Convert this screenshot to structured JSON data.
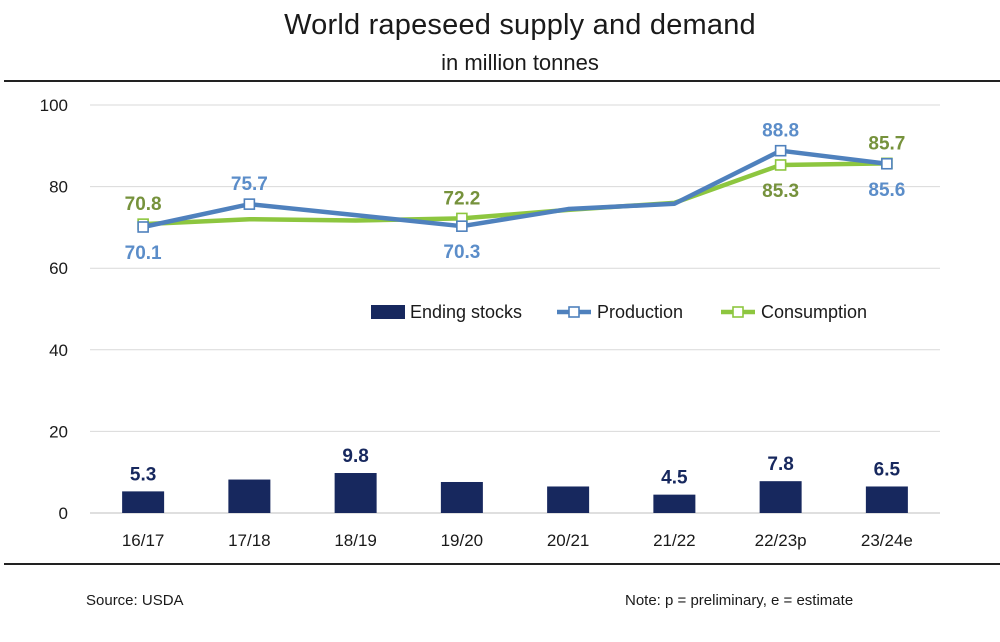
{
  "title": "World rapeseed supply and demand",
  "subtitle": "in million tonnes",
  "source": "Source: USDA",
  "note": "Note: p = preliminary,  e = estimate",
  "colors": {
    "ending_stocks": "#17285e",
    "production": "#4f81bd",
    "consumption": "#8dc63f",
    "production_label": "#5b8dc9",
    "consumption_label": "#76923c",
    "grid": "#d9d9d9"
  },
  "chart_data": {
    "type": "bar",
    "categories": [
      "16/17",
      "17/18",
      "18/19",
      "19/20",
      "20/21",
      "21/22",
      "22/23p",
      "23/24e"
    ],
    "ylim": [
      0,
      100
    ],
    "yticks": [
      0,
      20,
      40,
      60,
      80,
      100
    ],
    "grid": true,
    "legend_position": "middle-right",
    "series": [
      {
        "name": "Ending stocks",
        "type": "bar",
        "values": [
          5.3,
          8.2,
          9.8,
          7.6,
          6.5,
          4.5,
          7.8,
          6.5
        ],
        "data_labels": [
          "5.3",
          null,
          "9.8",
          null,
          null,
          "4.5",
          "7.8",
          "6.5"
        ]
      },
      {
        "name": "Production",
        "type": "line",
        "values": [
          70.1,
          75.7,
          73.0,
          70.3,
          74.5,
          75.8,
          88.8,
          85.6
        ],
        "markers": [
          true,
          true,
          false,
          true,
          false,
          false,
          true,
          true
        ],
        "data_labels": [
          "70.1",
          "75.7",
          null,
          "70.3",
          null,
          null,
          "88.8",
          "85.6"
        ]
      },
      {
        "name": "Consumption",
        "type": "line",
        "values": [
          70.8,
          72.0,
          71.7,
          72.2,
          74.3,
          76.0,
          85.3,
          85.7
        ],
        "markers": [
          true,
          false,
          false,
          true,
          false,
          false,
          true,
          true
        ],
        "data_labels": [
          "70.8",
          null,
          null,
          "72.2",
          null,
          null,
          "85.3",
          "85.7"
        ]
      }
    ]
  }
}
